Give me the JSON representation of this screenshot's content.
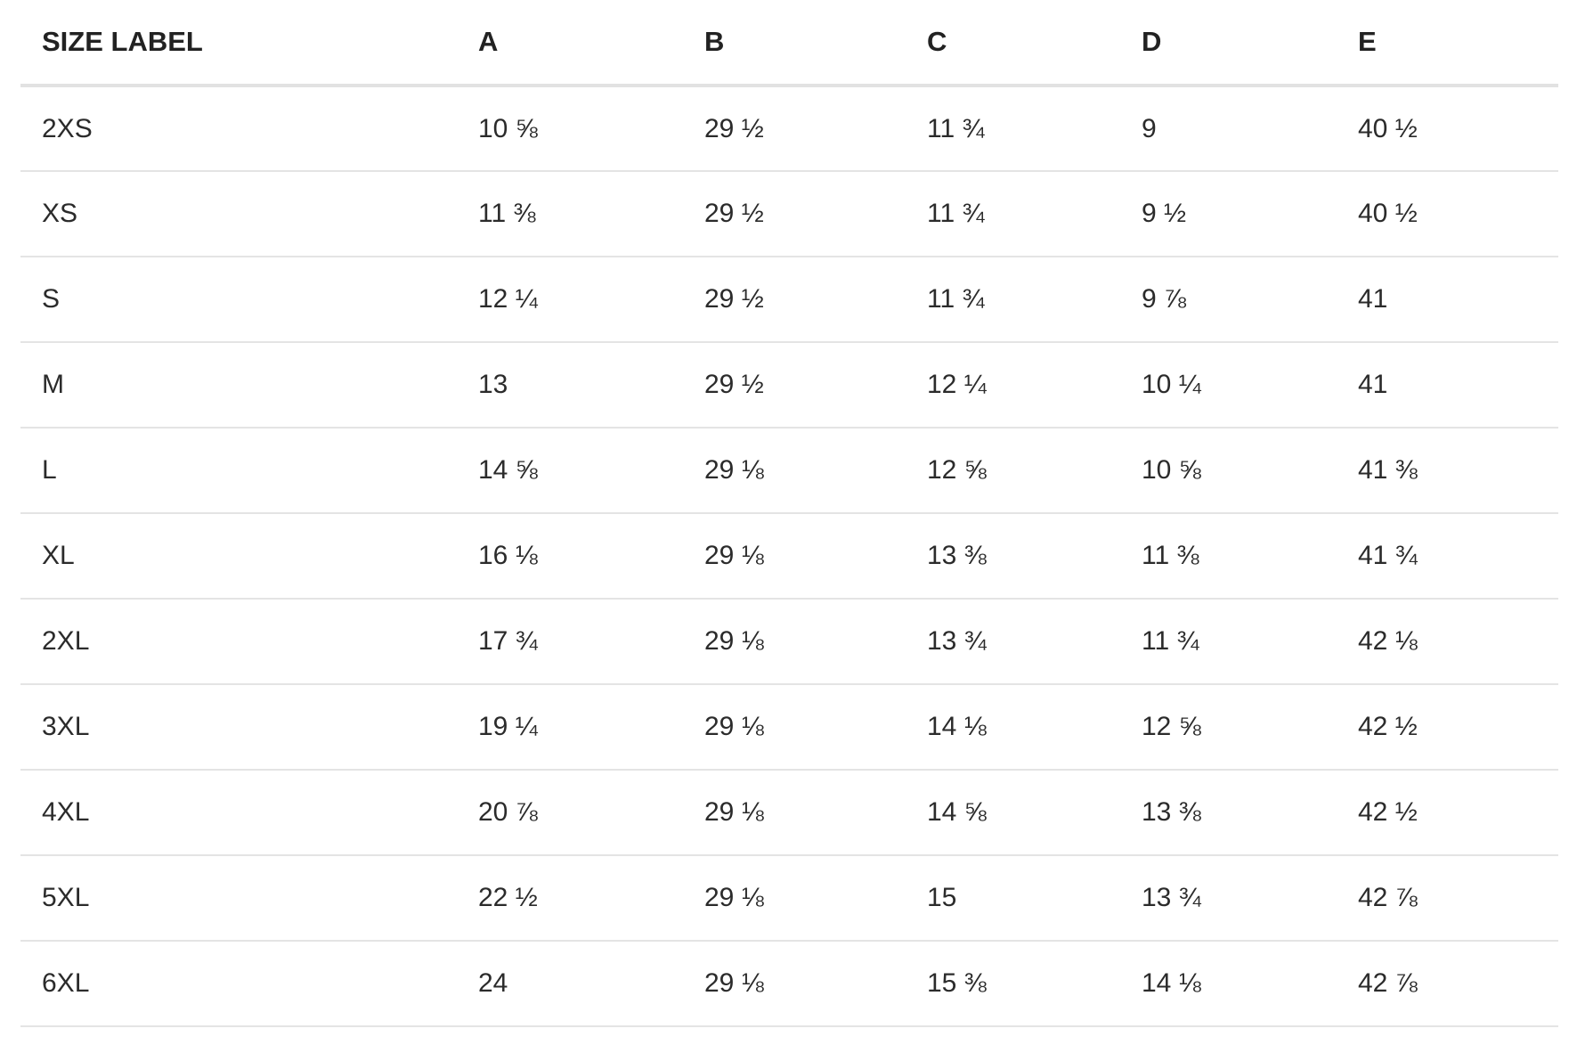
{
  "table": {
    "headers": [
      "SIZE LABEL",
      "A",
      "B",
      "C",
      "D",
      "E"
    ],
    "rows": [
      [
        "2XS",
        "10 ⅝",
        "29 ½",
        "11 ¾",
        "9",
        "40 ½"
      ],
      [
        "XS",
        "11 ⅜",
        "29 ½",
        "11 ¾",
        "9 ½",
        "40 ½"
      ],
      [
        "S",
        "12 ¼",
        "29 ½",
        "11 ¾",
        "9 ⅞",
        "41"
      ],
      [
        "M",
        "13",
        "29 ½",
        "12 ¼",
        "10 ¼",
        "41"
      ],
      [
        "L",
        "14 ⅝",
        "29 ⅛",
        "12 ⅝",
        "10 ⅝",
        "41 ⅜"
      ],
      [
        "XL",
        "16 ⅛",
        "29 ⅛",
        "13 ⅜",
        "11 ⅜",
        "41 ¾"
      ],
      [
        "2XL",
        "17 ¾",
        "29 ⅛",
        "13 ¾",
        "11 ¾",
        "42 ⅛"
      ],
      [
        "3XL",
        "19 ¼",
        "29 ⅛",
        "14 ⅛",
        "12 ⅝",
        "42 ½"
      ],
      [
        "4XL",
        "20 ⅞",
        "29 ⅛",
        "14 ⅝",
        "13 ⅜",
        "42 ½"
      ],
      [
        "5XL",
        "22 ½",
        "29 ⅛",
        "15",
        "13 ¾",
        "42 ⅞"
      ],
      [
        "6XL",
        "24",
        "29 ⅛",
        "15 ⅜",
        "14 ⅛",
        "42 ⅞"
      ]
    ]
  }
}
